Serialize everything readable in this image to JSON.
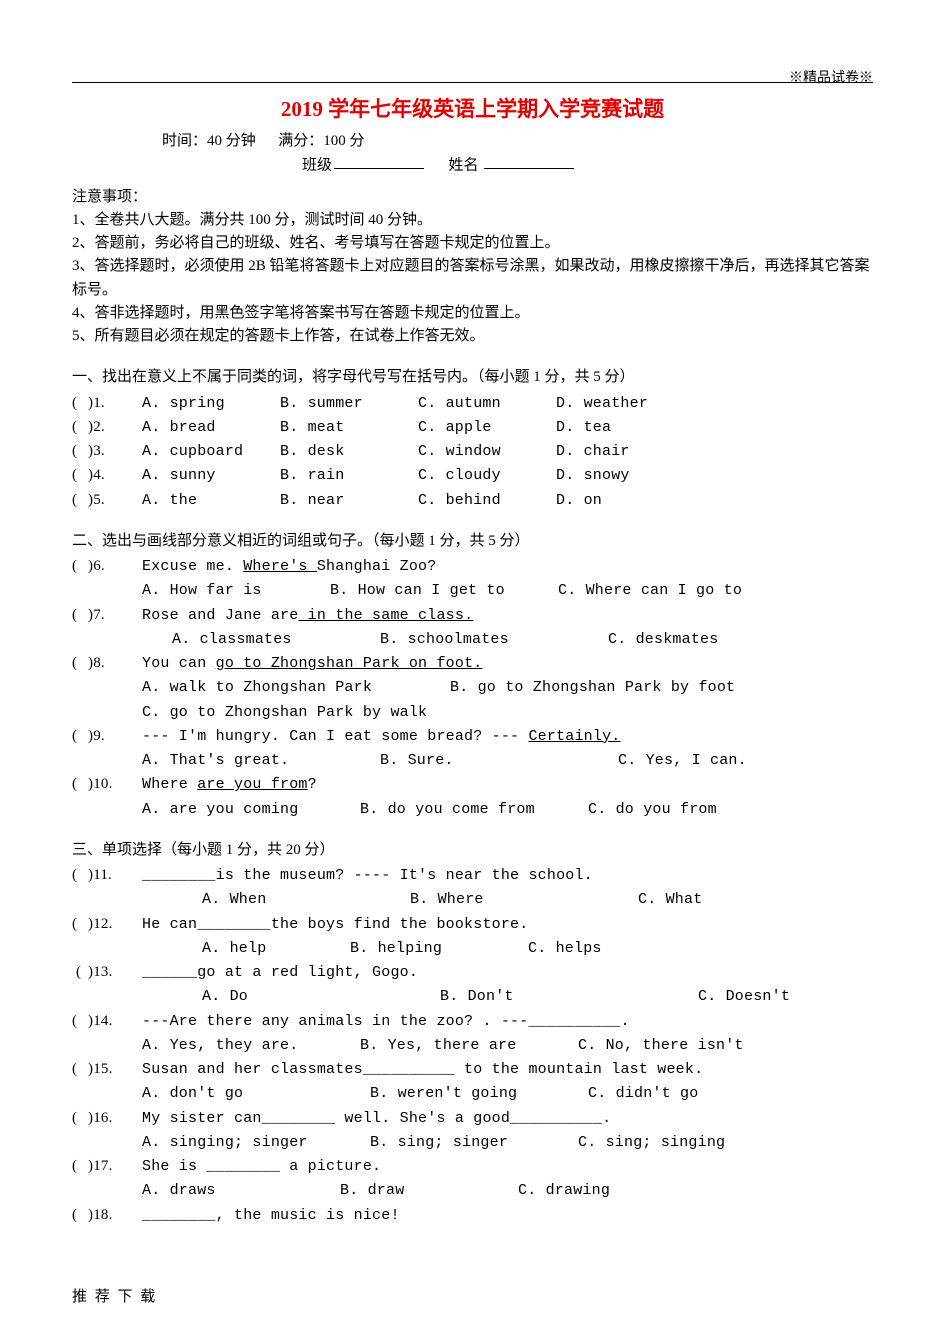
{
  "watermark": "※精品试卷※",
  "title": "2019 学年七年级英语上学期入学竞赛试题",
  "meta": {
    "time_label": "时间：",
    "time_value": "40 分钟",
    "full_label": "满分：",
    "full_value": "100 分",
    "class_label": "班级",
    "name_label": "姓名"
  },
  "notice": {
    "head": "注意事项：",
    "lines": [
      "1、全卷共八大题。满分共 100 分，测试时间 40 分钟。",
      "2、答题前，务必将自己的班级、姓名、考号填写在答题卡规定的位置上。",
      "3、答选择题时，必须使用 2B 铅笔将答题卡上对应题目的答案标号涂黑，如果改动，用橡皮擦擦干净后，再选择其它答案标号。",
      "4、答非选择题时，用黑色签字笔将答案书写在答题卡规定的位置上。",
      "5、所有题目必须在规定的答题卡上作答，在试卷上作答无效。"
    ]
  },
  "s1": {
    "title": "一、找出在意义上不属于同类的词，将字母代号写在括号内。（每小题 1 分，共 5 分）",
    "q": [
      {
        "n": "1",
        "opts": [
          [
            "A",
            "spring"
          ],
          [
            "B",
            "summer"
          ],
          [
            "C",
            "autumn"
          ],
          [
            "D",
            "weather"
          ]
        ]
      },
      {
        "n": "2",
        "opts": [
          [
            "A",
            "bread"
          ],
          [
            "B",
            "meat"
          ],
          [
            "C",
            "apple"
          ],
          [
            "D",
            "tea"
          ]
        ]
      },
      {
        "n": "3",
        "opts": [
          [
            "A",
            "cupboard"
          ],
          [
            "B",
            "desk"
          ],
          [
            "C",
            "window"
          ],
          [
            "D",
            "chair"
          ]
        ]
      },
      {
        "n": "4",
        "opts": [
          [
            "A",
            "sunny"
          ],
          [
            "B",
            "rain"
          ],
          [
            "C",
            "cloudy"
          ],
          [
            "D",
            "snowy"
          ]
        ]
      },
      {
        "n": "5",
        "opts": [
          [
            "A",
            "the"
          ],
          [
            "B",
            "near"
          ],
          [
            "C",
            "behind"
          ],
          [
            "D",
            "on"
          ]
        ]
      }
    ]
  },
  "s2": {
    "title": "二、选出与画线部分意义相近的词组或句子。（每小题 1 分，共 5 分）",
    "q6": {
      "n": "6",
      "stem_pre": "Excuse me. ",
      "u": "Where's ",
      "stem_post": "Shanghai Zoo?",
      "opts": [
        [
          "A",
          "How far is"
        ],
        [
          "B",
          "How can I get to"
        ],
        [
          "C",
          "Where can I go to"
        ]
      ]
    },
    "q7": {
      "n": "7",
      "stem_pre": "Rose and Jane are",
      "u": " in the same class.",
      "opts": [
        [
          "A",
          "classmates"
        ],
        [
          "B",
          "schoolmates"
        ],
        [
          "C",
          "deskmates"
        ]
      ]
    },
    "q8": {
      "n": "8",
      "stem_pre": "You can ",
      "u": "go to Zhongshan Park on foot.",
      "opts": [
        [
          "A",
          "walk to Zhongshan Park"
        ],
        [
          "B",
          "go to Zhongshan Park by foot"
        ],
        [
          "C",
          "go to Zhongshan Park by walk"
        ]
      ]
    },
    "q9": {
      "n": "9",
      "stem_pre": "--- I'm hungry. Can I eat some bread? --- ",
      "u": "Certainly.",
      "opts": [
        [
          "A",
          "That's great."
        ],
        [
          "B",
          "Sure."
        ],
        [
          "C",
          "Yes, I can."
        ]
      ]
    },
    "q10": {
      "n": "10",
      "stem_pre": "Where ",
      "u": "are you from",
      "stem_post": "?",
      "opts": [
        [
          "A",
          "are you coming"
        ],
        [
          "B",
          "do you come from"
        ],
        [
          "C",
          "do you from"
        ]
      ]
    }
  },
  "s3": {
    "title": "三、单项选择（每小题 1 分，共 20 分）",
    "q11": {
      "n": "11",
      "stem": "________is the museum?    ---- It's near the school.",
      "opts": [
        [
          "A",
          "When"
        ],
        [
          "B",
          "Where"
        ],
        [
          "C",
          "What"
        ]
      ]
    },
    "q12": {
      "n": "12",
      "stem": "He can________the boys find the bookstore.",
      "opts": [
        [
          "A",
          "help"
        ],
        [
          "B",
          "helping"
        ],
        [
          "C",
          "helps"
        ]
      ]
    },
    "q13": {
      "n": "13",
      "stem": "______go at a red light, Gogo.",
      "opts": [
        [
          "A",
          "Do"
        ],
        [
          "B",
          "Don't"
        ],
        [
          "C",
          "Doesn't"
        ]
      ]
    },
    "q14": {
      "n": "14",
      "stem": "---Are there any animals in the zoo?  .   ---__________.",
      "opts": [
        [
          "A",
          "Yes, they are."
        ],
        [
          "B",
          "Yes, there are"
        ],
        [
          "C",
          "No, there isn't"
        ]
      ]
    },
    "q15": {
      "n": "15",
      "stem": "Susan and her classmates__________ to the mountain last week.",
      "opts": [
        [
          "A",
          "don't go"
        ],
        [
          "B",
          "weren't going"
        ],
        [
          "C",
          "didn't go"
        ]
      ]
    },
    "q16": {
      "n": "16",
      "stem": "My sister can________ well. She's a good__________.",
      "opts": [
        [
          "A",
          "singing; singer"
        ],
        [
          "B",
          "sing; singer"
        ],
        [
          "C",
          "sing; singing"
        ]
      ]
    },
    "q17": {
      "n": "17",
      "stem": "She is ________ a picture.",
      "opts": [
        [
          "A",
          "draws"
        ],
        [
          "B",
          "draw"
        ],
        [
          "C",
          "drawing"
        ]
      ]
    },
    "q18": {
      "n": "18",
      "stem": "________, the music is nice!"
    }
  },
  "footer": "推 荐 下 载",
  "colwidths": {
    "s1": [
      130,
      130,
      130,
      130
    ]
  }
}
